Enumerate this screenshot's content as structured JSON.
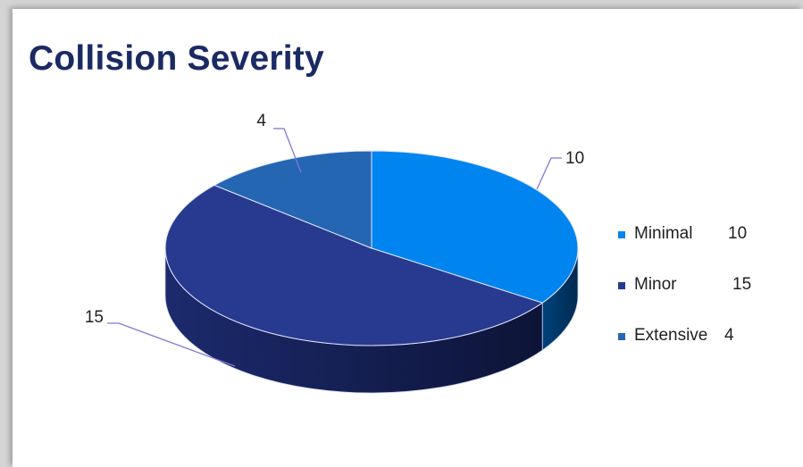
{
  "title": "Collision Severity",
  "chart_data": {
    "type": "pie",
    "style": "3d",
    "title": "Collision Severity",
    "categories": [
      "Minimal",
      "Minor",
      "Extensive"
    ],
    "values": [
      10,
      15,
      4
    ],
    "colors": [
      "#0085f0",
      "#283a8f",
      "#2566b3"
    ],
    "side_colors": [
      "#004f91",
      "#121b4d",
      "#173d6c"
    ],
    "data_labels": [
      "10",
      "15",
      "4"
    ],
    "legend": {
      "position": "right",
      "entries": [
        {
          "name": "Minimal",
          "value": "10"
        },
        {
          "name": "Minor",
          "value": "15"
        },
        {
          "name": "Extensive",
          "value": "4"
        }
      ]
    },
    "leader_line_color": "#7f78d2"
  }
}
